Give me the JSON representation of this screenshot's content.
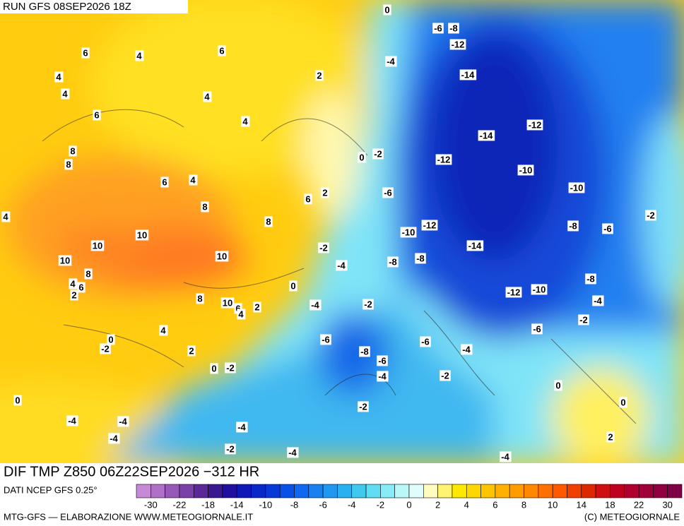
{
  "header": {
    "run": "RUN GFS 08SEP2026 18Z"
  },
  "map": {
    "title": "DIF TMP Z850 06Z22SEP2026 −312 HR",
    "contour_labels": [
      0,
      -6,
      -8,
      -12,
      -4,
      -14,
      6,
      4,
      6,
      4,
      2,
      4,
      4,
      6,
      4,
      -14,
      -12,
      8,
      8,
      0,
      -2,
      -12,
      -10,
      6,
      4,
      -10,
      2,
      -6,
      6,
      8,
      4,
      -2,
      8,
      -8,
      -6,
      10,
      -10,
      -12,
      10,
      -2,
      -14,
      10,
      -8,
      -8,
      10,
      -4,
      8,
      -8,
      4,
      6,
      0,
      -12,
      -10,
      2,
      8,
      10,
      -4,
      6,
      -4,
      -2,
      2,
      4,
      -2,
      -6,
      4,
      -6,
      -6,
      0,
      -2,
      -4,
      2,
      -8,
      -6,
      0,
      -2,
      -4,
      -2,
      0,
      0,
      -2,
      0,
      -4,
      -4,
      -4,
      -4,
      2,
      -2,
      -4,
      -4
    ]
  },
  "legend": {
    "source": "DATI NCEP GFS 0.25°",
    "ticks": [
      -30,
      -22,
      -18,
      -14,
      -10,
      -8,
      -6,
      -4,
      -2,
      0,
      2,
      4,
      6,
      8,
      10,
      14,
      18,
      22,
      30
    ],
    "colors": [
      "#c888d8",
      "#b070c8",
      "#9858b8",
      "#7840a8",
      "#5a2898",
      "#3a1890",
      "#2010a0",
      "#1018b8",
      "#0828c8",
      "#0838d8",
      "#0850e8",
      "#1068f0",
      "#1880f0",
      "#2098f0",
      "#28b0f0",
      "#40c8f0",
      "#60dcf4",
      "#88ecf8",
      "#b8f8fa",
      "#e0fcfc",
      "#fffcc0",
      "#fff470",
      "#ffe800",
      "#ffd800",
      "#ffc400",
      "#ffb000",
      "#ff9c00",
      "#ff8800",
      "#ff7000",
      "#ff5800",
      "#f04000",
      "#e02800",
      "#d01010",
      "#c00020",
      "#b00030",
      "#a00038",
      "#900040",
      "#800048"
    ],
    "credit_left": "MTG-GFS — ELABORAZIONE WWW.METEOGIORNALE.IT",
    "credit_right": "(C) METEOGIORNALE"
  }
}
